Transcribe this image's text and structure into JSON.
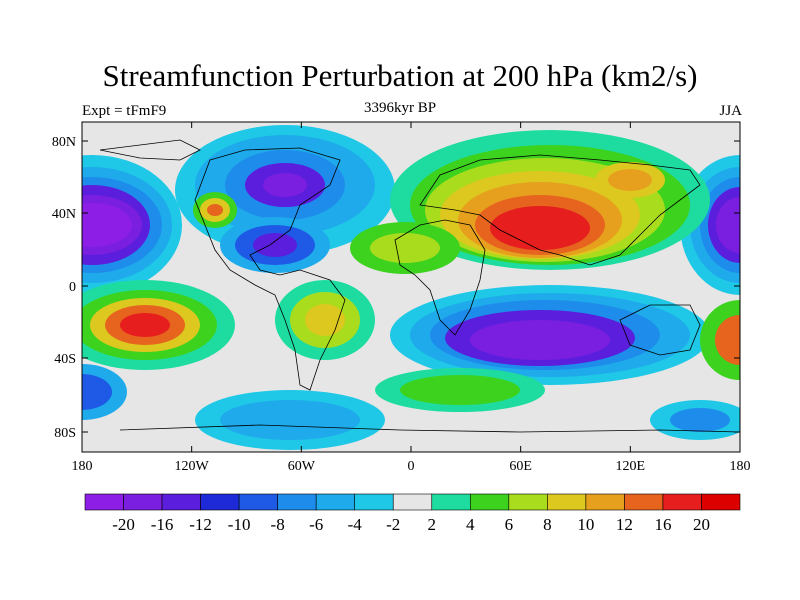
{
  "title": "Streamfunction Perturbation at 200 hPa (km2/s)",
  "experiment": "Expt = tFmF9",
  "time": "3396kyr BP",
  "season": "JJA",
  "lat_labels": [
    "80N",
    "40N",
    "0",
    "40S",
    "80S"
  ],
  "lon_labels": [
    "180",
    "120W",
    "60W",
    "0",
    "60E",
    "120E",
    "180"
  ],
  "colorbar": {
    "labels": [
      "-20",
      "-16",
      "-12",
      "-10",
      "-8",
      "-6",
      "-4",
      "-2",
      "2",
      "4",
      "6",
      "8",
      "10",
      "12",
      "16",
      "20"
    ],
    "colors": [
      "#8c1ee6",
      "#7a1ee0",
      "#5a1edc",
      "#1e2ad8",
      "#1e5ae6",
      "#1e8ceb",
      "#1eaaeb",
      "#1ec8e6",
      "#e6e6e6",
      "#1edca0",
      "#3cd21e",
      "#aadc1e",
      "#dcc81e",
      "#e6a01e",
      "#e6641e",
      "#e61e1e",
      "#dc0000"
    ]
  },
  "fields": {
    "positive_color": "#e61e1e",
    "negative_color": "#5a1edc"
  }
}
